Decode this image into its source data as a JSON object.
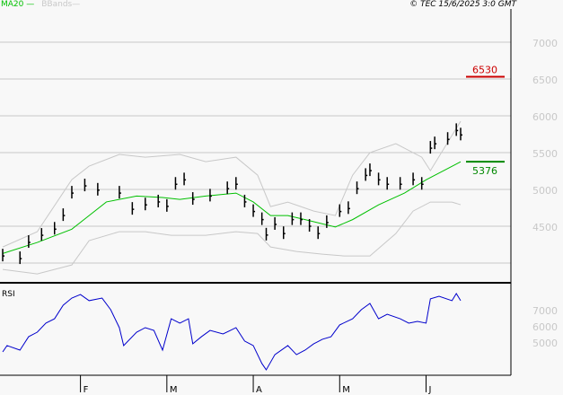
{
  "legend": {
    "ma_label": "MA20",
    "bbands_label": "BBands"
  },
  "copyright": "© TEC 15/6/2025 3:0 GMT",
  "chart_data": [
    {
      "type": "ohlc-line",
      "ylim": [
        3750,
        7300
      ],
      "grid": true,
      "y_ticks": [
        {
          "value": 7000,
          "label": "7000"
        },
        {
          "value": 6500,
          "label": "6500"
        },
        {
          "value": 6000,
          "label": "6000"
        },
        {
          "value": 5500,
          "label": "5500"
        },
        {
          "value": 5000,
          "label": "5000"
        },
        {
          "value": 4500,
          "label": "4500"
        },
        {
          "value": 4000,
          "label": ""
        }
      ],
      "x_ticks": [
        {
          "bar": 18,
          "label": "F"
        },
        {
          "bar": 38,
          "label": "M"
        },
        {
          "bar": 58,
          "label": "A"
        },
        {
          "bar": 78,
          "label": "M"
        },
        {
          "bar": 98,
          "label": "J"
        }
      ],
      "total_bars": 107,
      "price_bars": [
        [
          0,
          4096
        ],
        [
          4,
          4060
        ],
        [
          6,
          4280
        ],
        [
          9,
          4377
        ],
        [
          12,
          4460
        ],
        [
          14,
          4645
        ],
        [
          16,
          4950
        ],
        [
          19,
          5048
        ],
        [
          22,
          4990
        ],
        [
          27,
          4950
        ],
        [
          30,
          4730
        ],
        [
          33,
          4790
        ],
        [
          36,
          4830
        ],
        [
          38,
          4770
        ],
        [
          40,
          5070
        ],
        [
          42,
          5130
        ],
        [
          44,
          4865
        ],
        [
          48,
          4910
        ],
        [
          52,
          5010
        ],
        [
          54,
          5070
        ],
        [
          56,
          4830
        ],
        [
          58,
          4700
        ],
        [
          60,
          4590
        ],
        [
          61,
          4380
        ],
        [
          63,
          4525
        ],
        [
          65,
          4400
        ],
        [
          67,
          4590
        ],
        [
          69,
          4590
        ],
        [
          71,
          4500
        ],
        [
          73,
          4400
        ],
        [
          75,
          4550
        ],
        [
          78,
          4700
        ],
        [
          80,
          4740
        ],
        [
          82,
          5010
        ],
        [
          84,
          5190
        ],
        [
          85,
          5255
        ],
        [
          87,
          5130
        ],
        [
          89,
          5070
        ],
        [
          92,
          5070
        ],
        [
          95,
          5130
        ],
        [
          97,
          5070
        ],
        [
          99,
          5560
        ],
        [
          100,
          5620
        ],
        [
          103,
          5680
        ],
        [
          105,
          5800
        ],
        [
          106,
          5740
        ]
      ],
      "ma20": [
        [
          0,
          4130
        ],
        [
          8,
          4280
        ],
        [
          16,
          4460
        ],
        [
          20,
          4645
        ],
        [
          24,
          4830
        ],
        [
          31,
          4910
        ],
        [
          37,
          4890
        ],
        [
          41,
          4865
        ],
        [
          47,
          4910
        ],
        [
          54,
          4950
        ],
        [
          58,
          4830
        ],
        [
          62,
          4645
        ],
        [
          66,
          4645
        ],
        [
          70,
          4590
        ],
        [
          77,
          4490
        ],
        [
          81,
          4590
        ],
        [
          87,
          4790
        ],
        [
          93,
          4950
        ],
        [
          98,
          5130
        ],
        [
          106,
          5376
        ]
      ],
      "bb_upper": [
        [
          0,
          4218
        ],
        [
          8,
          4426
        ],
        [
          16,
          5133
        ],
        [
          20,
          5316
        ],
        [
          27,
          5475
        ],
        [
          33,
          5438
        ],
        [
          41,
          5475
        ],
        [
          47,
          5377
        ],
        [
          54,
          5438
        ],
        [
          59,
          5194
        ],
        [
          62,
          4767
        ],
        [
          66,
          4828
        ],
        [
          72,
          4706
        ],
        [
          77,
          4645
        ],
        [
          81,
          5194
        ],
        [
          85,
          5499
        ],
        [
          91,
          5621
        ],
        [
          97,
          5438
        ],
        [
          99,
          5255
        ],
        [
          106,
          5926
        ]
      ],
      "bb_lower": [
        [
          0,
          3913
        ],
        [
          8,
          3852
        ],
        [
          16,
          3974
        ],
        [
          20,
          4304
        ],
        [
          27,
          4426
        ],
        [
          33,
          4426
        ],
        [
          39,
          4377
        ],
        [
          47,
          4377
        ],
        [
          54,
          4426
        ],
        [
          59,
          4401
        ],
        [
          62,
          4218
        ],
        [
          68,
          4157
        ],
        [
          74,
          4121
        ],
        [
          79,
          4096
        ],
        [
          85,
          4096
        ],
        [
          91,
          4401
        ],
        [
          95,
          4706
        ],
        [
          99,
          4828
        ],
        [
          104,
          4828
        ],
        [
          106,
          4792
        ]
      ],
      "levels": [
        {
          "value": 6530,
          "label": "6530",
          "color": "#cc0000"
        },
        {
          "value": 5376,
          "label": "5376",
          "color": "#008800"
        }
      ]
    },
    {
      "type": "line",
      "title": "RSI",
      "ylim": [
        15,
        98
      ],
      "y_ticks": [
        {
          "value": 70,
          "label": "7000"
        },
        {
          "value": 60,
          "label": "6000"
        },
        {
          "value": 50,
          "label": "5000"
        }
      ],
      "color": "#0000cc",
      "rsi": [
        [
          0,
          43.9
        ],
        [
          1,
          47.8
        ],
        [
          4,
          45
        ],
        [
          6,
          53.3
        ],
        [
          8,
          56.1
        ],
        [
          10,
          61.7
        ],
        [
          12,
          64.4
        ],
        [
          14,
          72.8
        ],
        [
          16,
          77.2
        ],
        [
          18,
          79.4
        ],
        [
          20,
          75.6
        ],
        [
          23,
          77.2
        ],
        [
          25,
          70
        ],
        [
          27,
          58.9
        ],
        [
          28,
          47.8
        ],
        [
          31,
          56.1
        ],
        [
          33,
          58.9
        ],
        [
          35,
          57.2
        ],
        [
          37,
          45
        ],
        [
          39,
          64.4
        ],
        [
          41,
          61.7
        ],
        [
          43,
          64.4
        ],
        [
          44,
          48.9
        ],
        [
          46,
          53.3
        ],
        [
          48,
          57.2
        ],
        [
          51,
          55
        ],
        [
          54,
          58.9
        ],
        [
          56,
          50.6
        ],
        [
          58,
          47.8
        ],
        [
          60,
          36.7
        ],
        [
          61,
          32.8
        ],
        [
          63,
          42.2
        ],
        [
          66,
          47.8
        ],
        [
          68,
          42.2
        ],
        [
          70,
          45
        ],
        [
          72,
          48.9
        ],
        [
          74,
          51.7
        ],
        [
          76,
          53.3
        ],
        [
          78,
          60.6
        ],
        [
          81,
          64.4
        ],
        [
          83,
          70
        ],
        [
          85,
          73.9
        ],
        [
          87,
          64.4
        ],
        [
          89,
          67.2
        ],
        [
          92,
          64.4
        ],
        [
          94,
          61.7
        ],
        [
          96,
          62.8
        ],
        [
          98,
          61.7
        ],
        [
          99,
          76.7
        ],
        [
          101,
          78.3
        ],
        [
          104,
          75.6
        ],
        [
          105,
          80
        ],
        [
          106,
          75.6
        ]
      ]
    }
  ]
}
